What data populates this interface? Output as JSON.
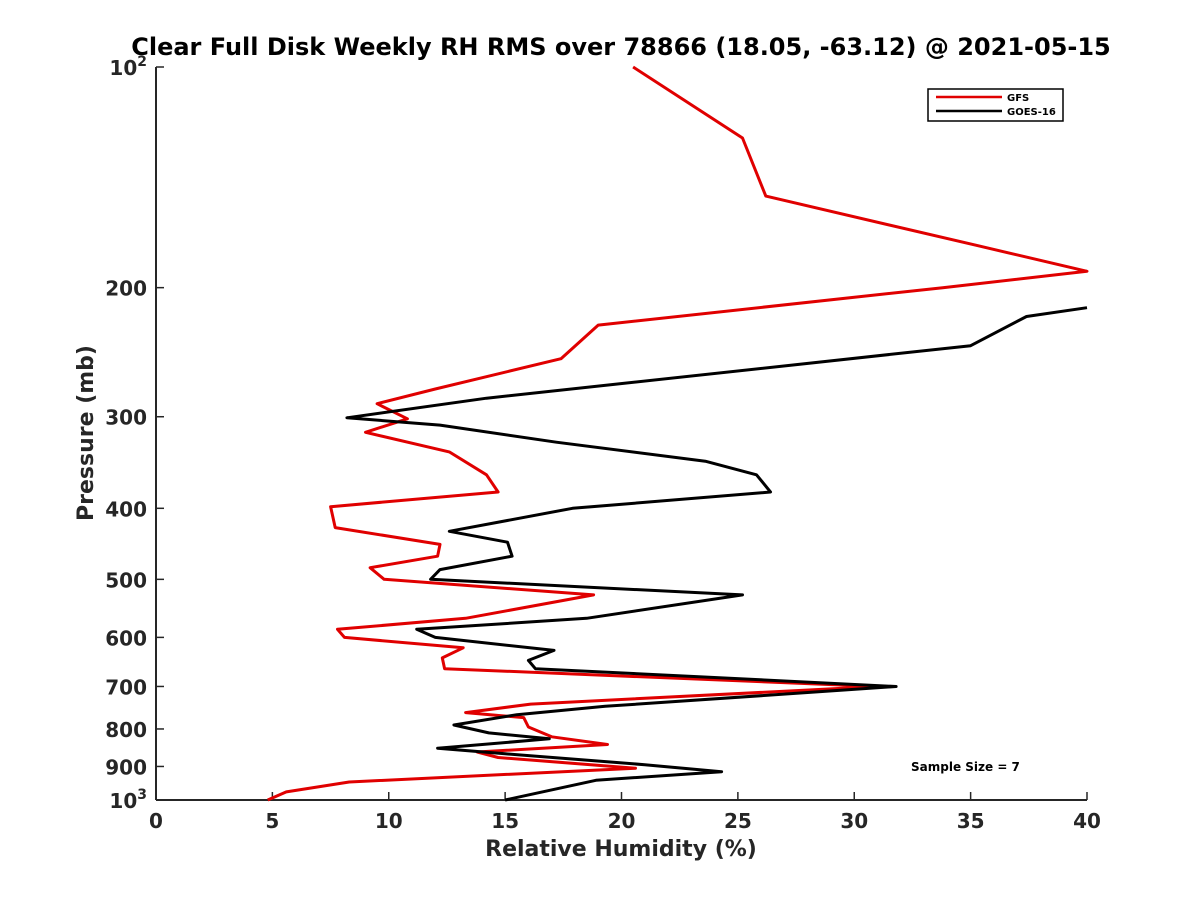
{
  "chart_data": {
    "type": "line",
    "title": "Clear Full Disk Weekly RH RMS over 78866 (18.05, -63.12) @ 2021-05-15",
    "xlabel": "Relative Humidity (%)",
    "ylabel": "Pressure (mb)",
    "xlim": [
      0,
      40
    ],
    "ylim": [
      100,
      1000
    ],
    "y_scale": "log",
    "y_reversed": true,
    "x_ticks": [
      0,
      5,
      10,
      15,
      20,
      25,
      30,
      35,
      40
    ],
    "y_ticks": [
      {
        "value": 100,
        "label": "10",
        "exp": "2"
      },
      {
        "value": 200,
        "label": "200"
      },
      {
        "value": 300,
        "label": "300"
      },
      {
        "value": 400,
        "label": "400"
      },
      {
        "value": 500,
        "label": "500"
      },
      {
        "value": 600,
        "label": "600"
      },
      {
        "value": 700,
        "label": "700"
      },
      {
        "value": 800,
        "label": "800"
      },
      {
        "value": 900,
        "label": "900"
      },
      {
        "value": 1000,
        "label": "10",
        "exp": "3"
      }
    ],
    "grid": false,
    "legend_position": "top-right",
    "annotation": "Sample Size = 7",
    "series": [
      {
        "name": "GFS",
        "color": "#e00000",
        "points": [
          [
            20.5,
            100
          ],
          [
            25.2,
            125
          ],
          [
            26.2,
            150
          ],
          [
            35.2,
            175
          ],
          [
            40.0,
            190
          ],
          [
            33.8,
            200
          ],
          [
            19.0,
            225
          ],
          [
            17.4,
            250
          ],
          [
            12.0,
            275
          ],
          [
            9.5,
            288
          ],
          [
            10.8,
            302
          ],
          [
            9.0,
            315
          ],
          [
            12.6,
            335
          ],
          [
            14.2,
            360
          ],
          [
            14.7,
            380
          ],
          [
            7.5,
            398
          ],
          [
            7.7,
            425
          ],
          [
            12.2,
            448
          ],
          [
            12.1,
            465
          ],
          [
            9.2,
            482
          ],
          [
            9.8,
            500
          ],
          [
            18.8,
            525
          ],
          [
            13.3,
            565
          ],
          [
            7.8,
            585
          ],
          [
            8.1,
            600
          ],
          [
            13.2,
            620
          ],
          [
            12.3,
            640
          ],
          [
            12.4,
            662
          ],
          [
            31.0,
            700
          ],
          [
            16.1,
            740
          ],
          [
            13.3,
            760
          ],
          [
            15.8,
            772
          ],
          [
            16.0,
            795
          ],
          [
            17.0,
            820
          ],
          [
            19.4,
            840
          ],
          [
            13.8,
            860
          ],
          [
            14.7,
            875
          ],
          [
            20.6,
            905
          ],
          [
            8.3,
            945
          ],
          [
            5.6,
            975
          ],
          [
            4.8,
            1000
          ]
        ]
      },
      {
        "name": "GOES-16",
        "color": "#000000",
        "points": [
          [
            40.0,
            213
          ],
          [
            37.4,
            219
          ],
          [
            35.0,
            240
          ],
          [
            14.2,
            283
          ],
          [
            8.2,
            301
          ],
          [
            12.2,
            308
          ],
          [
            17.2,
            325
          ],
          [
            23.6,
            345
          ],
          [
            25.8,
            360
          ],
          [
            26.4,
            380
          ],
          [
            17.9,
            400
          ],
          [
            12.6,
            430
          ],
          [
            15.1,
            445
          ],
          [
            15.3,
            465
          ],
          [
            12.2,
            485
          ],
          [
            11.8,
            500
          ],
          [
            25.2,
            525
          ],
          [
            18.5,
            565
          ],
          [
            11.2,
            585
          ],
          [
            12.0,
            600
          ],
          [
            17.1,
            625
          ],
          [
            16.0,
            645
          ],
          [
            16.3,
            662
          ],
          [
            31.8,
            700
          ],
          [
            19.3,
            745
          ],
          [
            15.5,
            765
          ],
          [
            12.8,
            790
          ],
          [
            14.3,
            810
          ],
          [
            16.9,
            825
          ],
          [
            12.1,
            850
          ],
          [
            15.0,
            865
          ],
          [
            21.0,
            895
          ],
          [
            24.3,
            915
          ],
          [
            18.9,
            940
          ],
          [
            15.0,
            1000
          ]
        ]
      }
    ]
  }
}
